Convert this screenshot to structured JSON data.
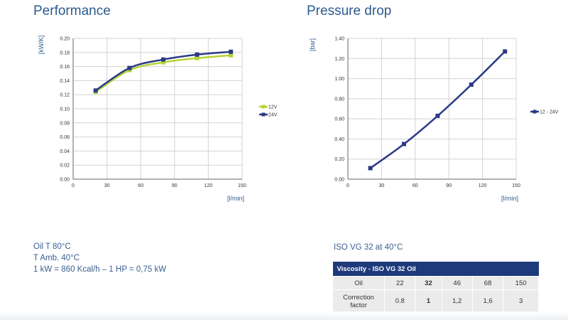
{
  "chart_data": [
    {
      "type": "line",
      "title": "Performance",
      "ylabel": "[kW/K]",
      "xlabel": "[l/min]",
      "xlim": [
        0,
        150
      ],
      "ylim": [
        0,
        0.2
      ],
      "x_ticks": [
        "0",
        "30",
        "60",
        "90",
        "120",
        "150"
      ],
      "y_ticks": [
        "0.00",
        "0.02",
        "0.04",
        "0.06",
        "0.08",
        "0.10",
        "0.12",
        "0.14",
        "0.16",
        "0.18",
        "0.20"
      ],
      "grid": true,
      "legend": "right",
      "series": [
        {
          "name": "12V",
          "color": "#b5d334",
          "x": [
            20,
            50,
            80,
            110,
            140
          ],
          "y": [
            0.124,
            0.155,
            0.166,
            0.172,
            0.176
          ]
        },
        {
          "name": "24V",
          "color": "#2b3a85",
          "x": [
            20,
            50,
            80,
            110,
            140
          ],
          "y": [
            0.126,
            0.158,
            0.17,
            0.177,
            0.181
          ]
        }
      ]
    },
    {
      "type": "line",
      "title": "Pressure drop",
      "ylabel": "[bar]",
      "xlabel": "[l/min]",
      "xlim": [
        0,
        150
      ],
      "ylim": [
        0,
        1.4
      ],
      "x_ticks": [
        "0",
        "30",
        "60",
        "90",
        "120",
        "150"
      ],
      "y_ticks": [
        "0.00",
        "0.20",
        "0.40",
        "0.60",
        "0.80",
        "1.00",
        "1.20",
        "1.40"
      ],
      "grid": true,
      "legend": "right",
      "series": [
        {
          "name": "12 - 24V",
          "color": "#2b3a85",
          "x": [
            20,
            50,
            80,
            110,
            140
          ],
          "y": [
            0.11,
            0.35,
            0.63,
            0.94,
            1.27
          ]
        }
      ]
    }
  ],
  "notes": {
    "oil_temp": "Oil T 80°C",
    "ambient_temp": "T Amb. 40°C",
    "conversion": "1 kW = 860 Kcal/h – 1 HP = 0,75 kW"
  },
  "oil_grade": "ISO VG 32 at 40°C",
  "viscosity_table": {
    "header": "Viscosity - ISO VG 32 Oil",
    "row1_label": "Oil",
    "row2_label": "Correction factor",
    "columns": [
      {
        "oil": "22",
        "factor": "0.8",
        "bold": false
      },
      {
        "oil": "32",
        "factor": "1",
        "bold": true
      },
      {
        "oil": "46",
        "factor": "1,2",
        "bold": false
      },
      {
        "oil": "68",
        "factor": "1,6",
        "bold": false
      },
      {
        "oil": "150",
        "factor": "3",
        "bold": false
      }
    ]
  }
}
